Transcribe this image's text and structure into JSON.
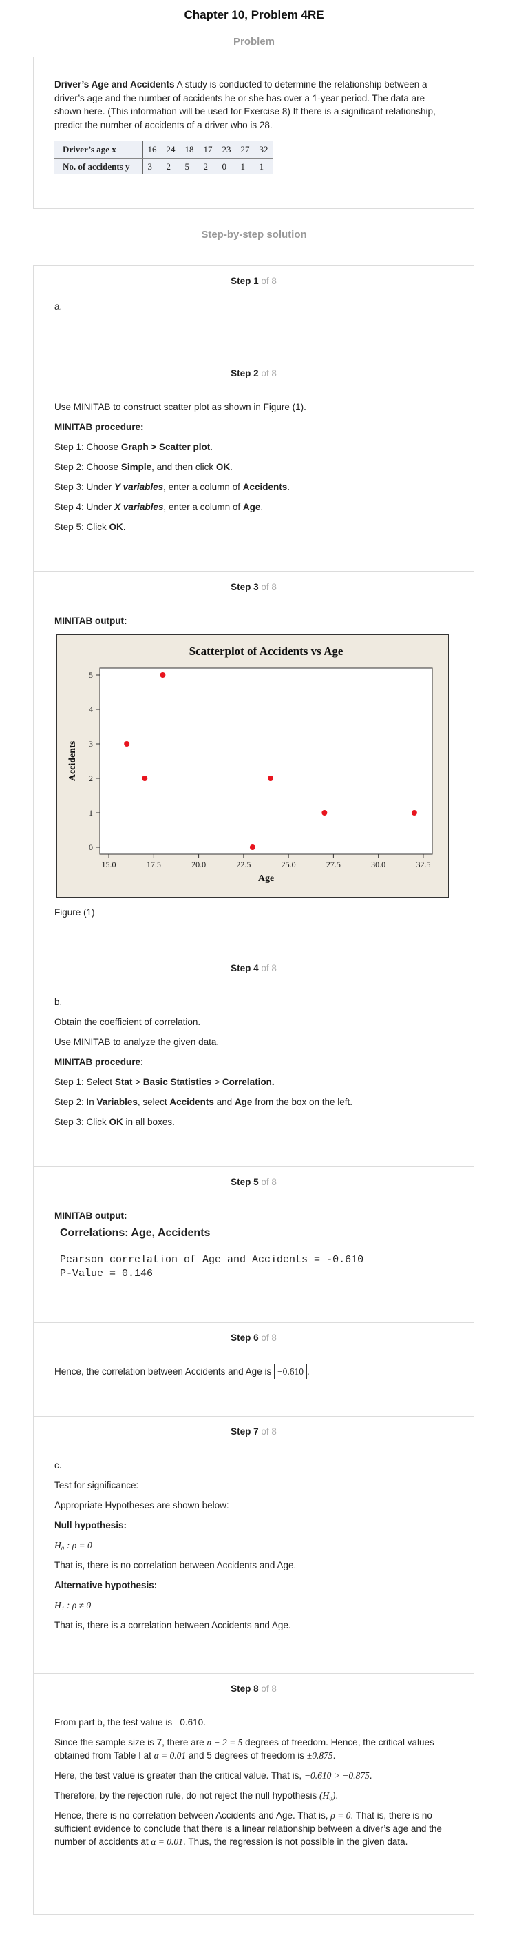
{
  "page": {
    "title": "Chapter 10, Problem 4RE",
    "problem_heading": "Problem",
    "solution_heading": "Step-by-step solution"
  },
  "problem": {
    "bold_lead": "Driver’s Age and Accidents",
    "text": " A study is conducted to determine the relationship between a driver’s age and the number of accidents he or she has over a 1-year period. The data are shown here. (This information will be used for Exercise 8) If there is a significant relationship, predict the number of accidents of a driver who is 28.",
    "table": {
      "row1_label": "Driver’s age x",
      "row1": [
        "16",
        "24",
        "18",
        "17",
        "23",
        "27",
        "32"
      ],
      "row2_label": "No. of accidents y",
      "row2": [
        "3",
        "2",
        "5",
        "2",
        "0",
        "1",
        "1"
      ]
    }
  },
  "steps": [
    {
      "label": "Step 1",
      "of": " of 8"
    },
    {
      "label": "Step 2",
      "of": " of 8"
    },
    {
      "label": "Step 3",
      "of": " of 8"
    },
    {
      "label": "Step 4",
      "of": " of 8"
    },
    {
      "label": "Step 5",
      "of": " of 8"
    },
    {
      "label": "Step 6",
      "of": " of 8"
    },
    {
      "label": "Step 7",
      "of": " of 8"
    },
    {
      "label": "Step 8",
      "of": " of 8"
    }
  ],
  "step1": {
    "text": "a."
  },
  "step2": {
    "intro": "Use MINITAB to construct scatter plot as shown in Figure (1).",
    "procedure_label": "MINITAB procedure:",
    "s1_pre": "Step 1: Choose ",
    "s1_b": "Graph > Scatter plot",
    "s1_post": ".",
    "s2_pre": "Step 2: Choose ",
    "s2_b": "Simple",
    "s2_mid": ", and then click ",
    "s2_b2": "OK",
    "s2_post": ".",
    "s3_pre": "Step 3: Under ",
    "s3_b": "Y variables",
    "s3_mid": ", enter a column of ",
    "s3_b2": "Accidents",
    "s3_post": ".",
    "s4_pre": "Step 4: Under ",
    "s4_b": "X variables",
    "s4_mid": ", enter a column of ",
    "s4_b2": "Age",
    "s4_post": ".",
    "s5_pre": "Step 5: Click ",
    "s5_b": "OK",
    "s5_post": "."
  },
  "step3": {
    "output_label": "MINITAB output:",
    "figure_caption": "Figure (1)"
  },
  "chart_data": {
    "type": "scatter",
    "title": "Scatterplot of Accidents vs Age",
    "xlabel": "Age",
    "ylabel": "Accidents",
    "x": [
      16,
      24,
      18,
      17,
      23,
      27,
      32
    ],
    "y": [
      3,
      2,
      5,
      2,
      0,
      1,
      1
    ],
    "xlim": [
      14.5,
      33
    ],
    "ylim": [
      -0.2,
      5.2
    ],
    "xticks": [
      "15.0",
      "17.5",
      "20.0",
      "22.5",
      "25.0",
      "27.5",
      "30.0",
      "32.5"
    ],
    "xtick_values": [
      15,
      17.5,
      20,
      22.5,
      25,
      27.5,
      30,
      32.5
    ],
    "yticks": [
      "0",
      "1",
      "2",
      "3",
      "4",
      "5"
    ],
    "ytick_values": [
      0,
      1,
      2,
      3,
      4,
      5
    ],
    "point_color": "#e8141e",
    "background": "#efeae0",
    "grid": false
  },
  "step4": {
    "part": "b.",
    "l1": "Obtain the coefficient of correlation.",
    "l2": "Use MINITAB to analyze the given data.",
    "procedure_label": "MINITAB procedure",
    "procedure_colon": ":",
    "s1_pre": "Step 1: Select ",
    "s1_b": "Stat",
    "s1_mid": " > ",
    "s1_b2": "Basic Statistics",
    "s1_mid2": " > ",
    "s1_b3": "Correlation.",
    "s2_pre": "Step 2: In ",
    "s2_b": "Variables",
    "s2_mid": ", select ",
    "s2_b2": "Accidents",
    "s2_mid2": " and ",
    "s2_b3": "Age",
    "s2_post": " from the box on the left.",
    "s3_pre": "Step 3: Click ",
    "s3_b": "OK",
    "s3_post": " in all boxes."
  },
  "step5": {
    "output_label": "MINITAB output:",
    "corr_title": "Correlations: Age, Accidents",
    "line1": "Pearson correlation of Age and Accidents = -0.610",
    "line2": "P-Value = 0.146"
  },
  "step6": {
    "text": "Hence, the correlation between Accidents and Age is ",
    "value": "−0.610",
    "end": "."
  },
  "step7": {
    "part": "c.",
    "l1": "Test for significance:",
    "l2": "Appropriate Hypotheses are shown below:",
    "null_label": "Null hypothesis:",
    "h0": "H₀ : ρ = 0",
    "null_text": "That is, there is no correlation between Accidents and Age.",
    "alt_label": "Alternative hypothesis:",
    "h1": "H₁ : ρ ≠ 0",
    "alt_text": "That is, there is a correlation between Accidents and Age."
  },
  "step8": {
    "l1": "From part b, the test value is –0.610.",
    "l2a": "Since the sample size is 7, there are ",
    "l2m": "n − 2 = 5",
    "l2b": " degrees of freedom. Hence, the critical values obtained from Table I at ",
    "l2m2": "α = 0.01",
    "l2c": " and 5 degrees of freedom is ",
    "l2m3": "±0.875",
    "l2d": ".",
    "l3a": "Here, the test value is greater than the critical value. That is, ",
    "l3m": "−0.610 > −0.875",
    "l3b": ".",
    "l4a": "Therefore, by the rejection rule, do not reject the null hypothesis ",
    "l4m": "(H₀)",
    "l4b": ".",
    "l5a": "Hence, there is no correlation between Accidents and Age. That is, ",
    "l5m": "ρ = 0",
    "l5b": ". That is, there is no sufficient evidence to conclude that there is a linear relationship between a diver’s age and the number of accidents at ",
    "l5m2": "α = 0.01",
    "l5c": ". Thus, the regression is not possible in the given data."
  }
}
